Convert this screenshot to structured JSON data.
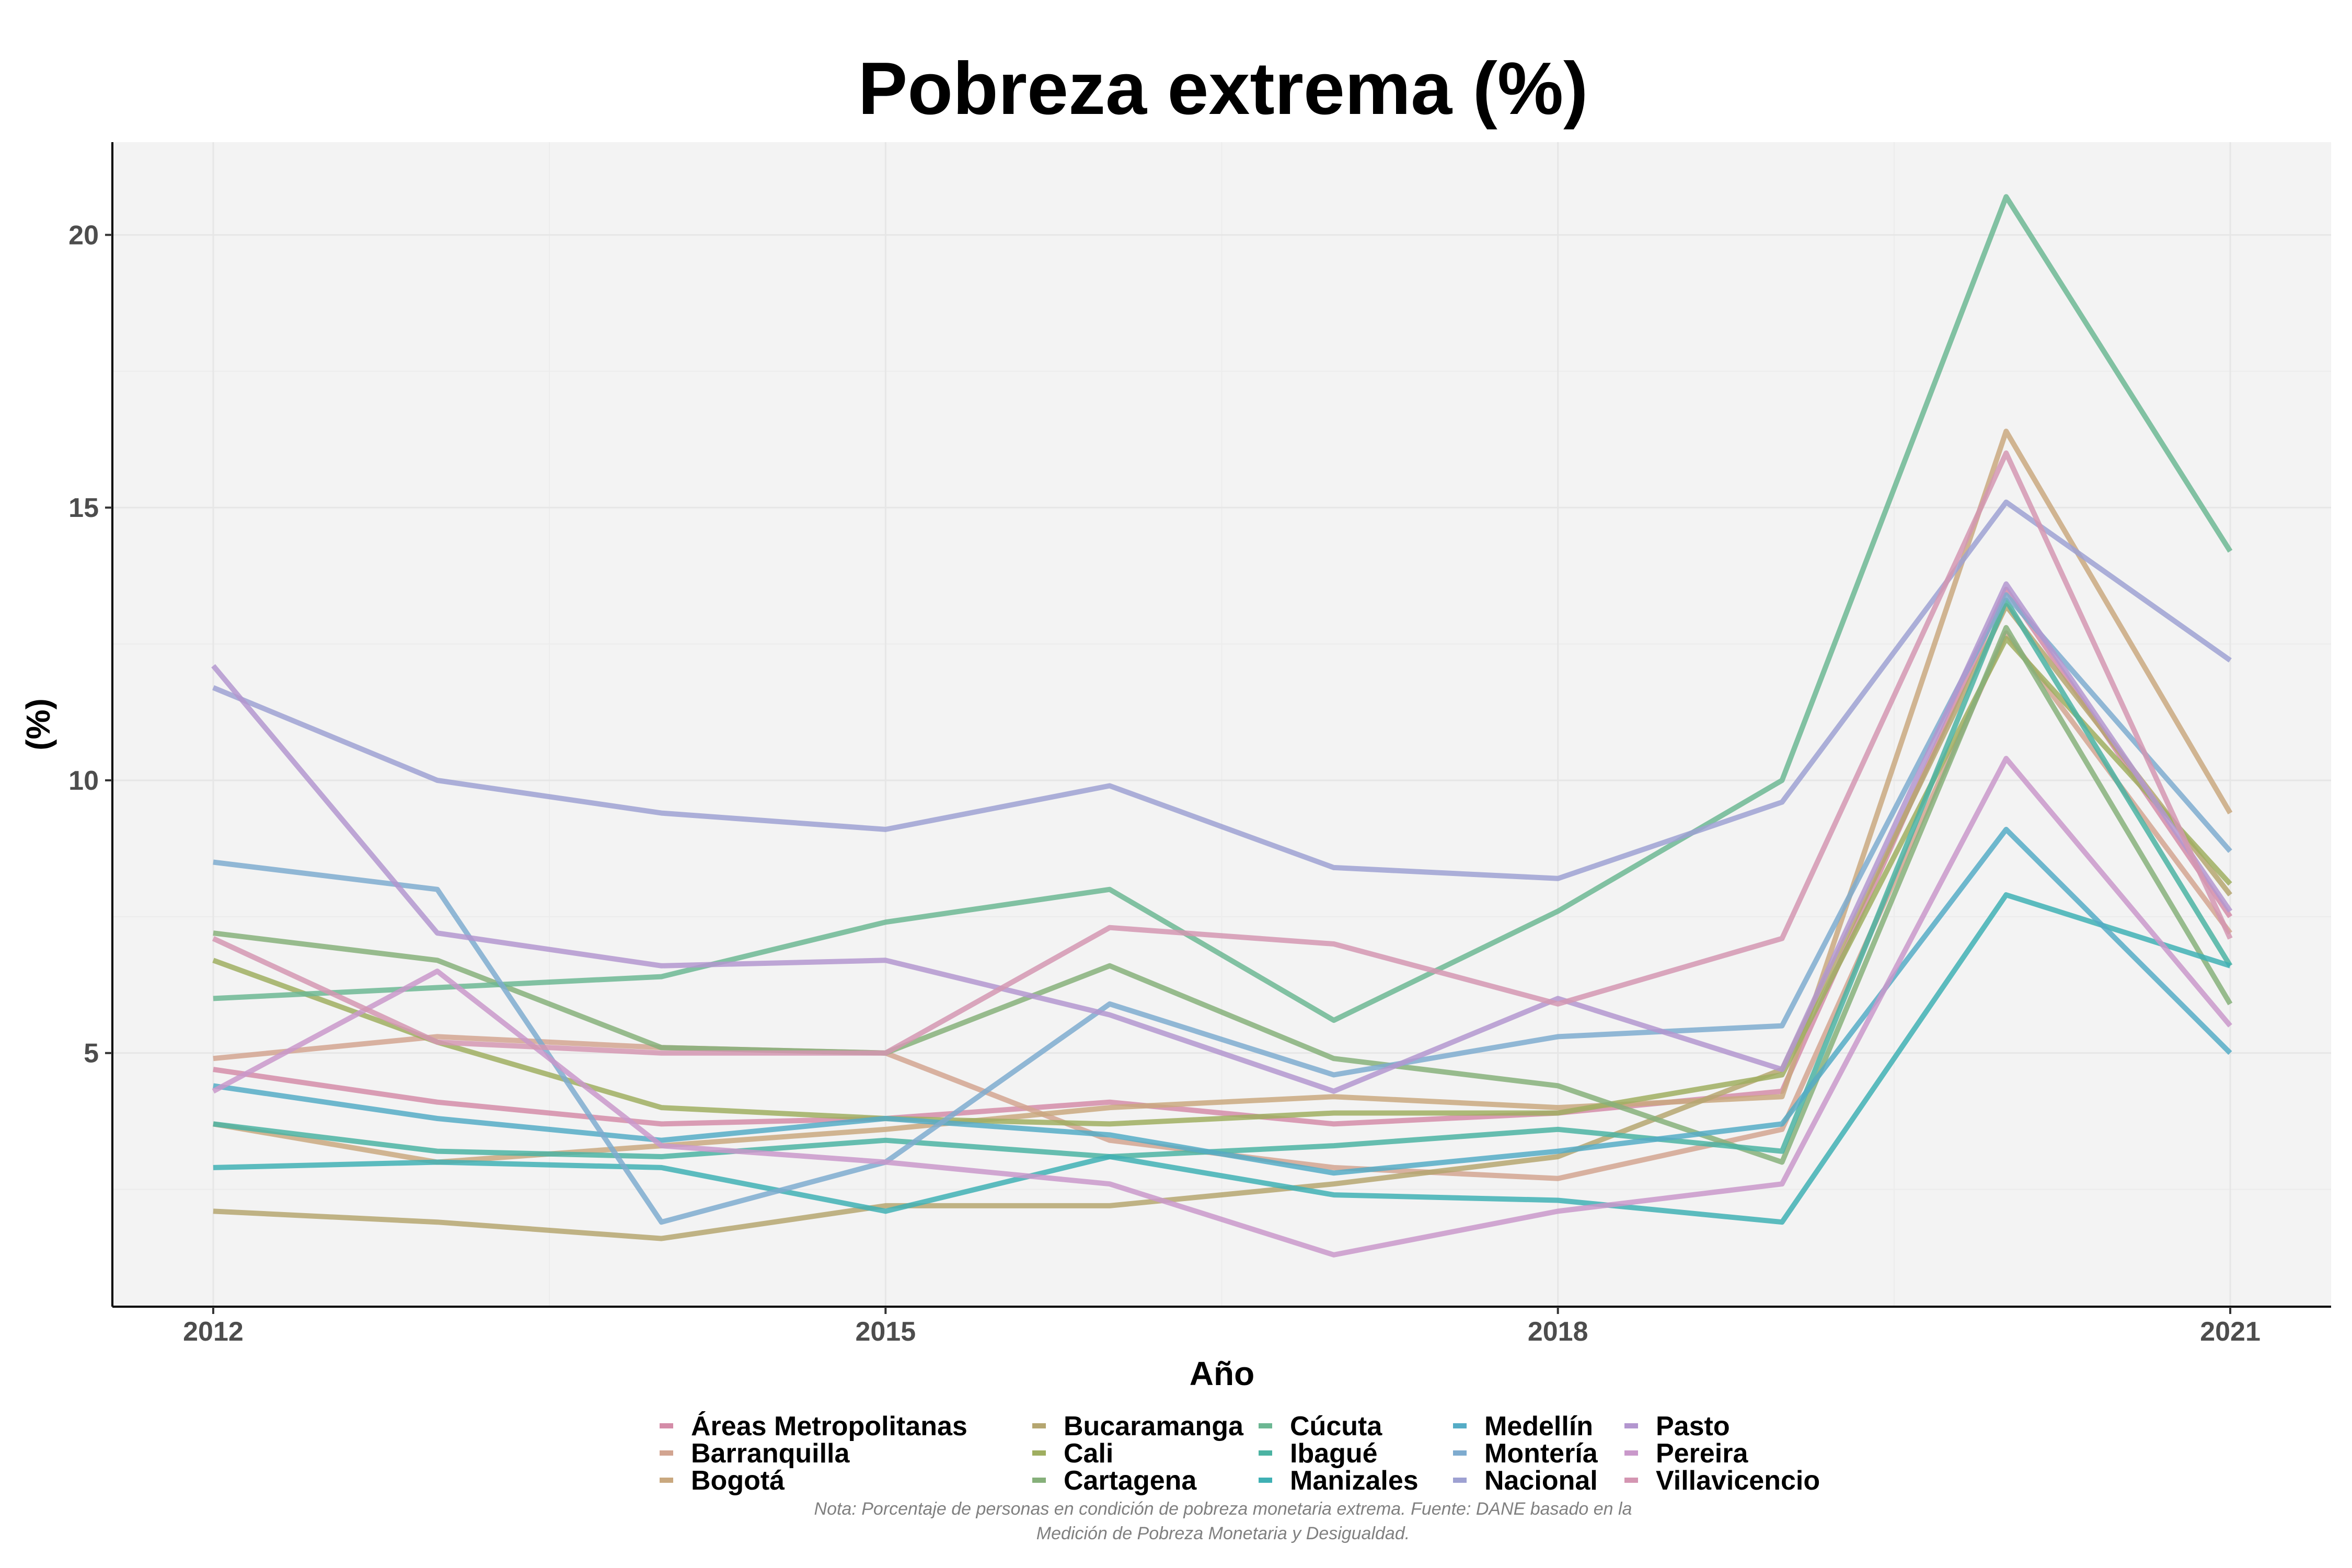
{
  "chart_data": {
    "type": "line",
    "title": "Pobreza extrema (%)",
    "xlabel": "Año",
    "ylabel": "(%)",
    "x": [
      2012,
      2013,
      2014,
      2015,
      2016,
      2017,
      2018,
      2019,
      2020,
      2021
    ],
    "xticks": [
      2012,
      2015,
      2018,
      2021
    ],
    "xtick_labels": [
      "2012",
      "2015",
      "2018",
      "2021"
    ],
    "yticks": [
      5,
      10,
      15,
      20
    ],
    "ytick_labels": [
      "5",
      "10",
      "15",
      "20"
    ],
    "xlim": [
      2011.55,
      2021.45
    ],
    "ylim": [
      0.35,
      21.7
    ],
    "grid": true,
    "legend_position": "bottom",
    "note_lines": [
      "Nota: Porcentaje de personas en condición de pobreza monetaria extrema. Fuente: DANE basado en la",
      "Medición de Pobreza Monetaria y Desigualdad."
    ],
    "series": [
      {
        "name": "Áreas Metropolitanas",
        "color": "#d48ca8",
        "values": [
          4.7,
          4.1,
          3.7,
          3.8,
          4.1,
          3.7,
          3.9,
          4.3,
          13.5,
          7.5
        ]
      },
      {
        "name": "Barranquilla",
        "color": "#d2a490",
        "values": [
          4.9,
          5.3,
          5.1,
          5.0,
          3.4,
          2.9,
          2.7,
          3.6,
          12.7,
          7.2
        ]
      },
      {
        "name": "Bogotá",
        "color": "#c9a87f",
        "values": [
          3.7,
          3.0,
          3.3,
          3.6,
          4.0,
          4.2,
          4.0,
          4.2,
          16.4,
          9.4
        ]
      },
      {
        "name": "Bucaramanga",
        "color": "#b5a670",
        "values": [
          2.1,
          1.9,
          1.6,
          2.2,
          2.2,
          2.6,
          3.1,
          4.7,
          13.2,
          7.9
        ]
      },
      {
        "name": "Cali",
        "color": "#9fae60",
        "values": [
          6.7,
          5.2,
          4.0,
          3.8,
          3.7,
          3.9,
          3.9,
          4.6,
          12.6,
          8.1
        ]
      },
      {
        "name": "Cartagena",
        "color": "#86b07a",
        "values": [
          7.2,
          6.7,
          5.1,
          5.0,
          6.6,
          4.9,
          4.4,
          3.0,
          12.8,
          5.9
        ]
      },
      {
        "name": "Cúcuta",
        "color": "#6cb793",
        "values": [
          6.0,
          6.2,
          6.4,
          7.4,
          8.0,
          5.6,
          7.6,
          10.0,
          20.7,
          14.2
        ]
      },
      {
        "name": "Ibagué",
        "color": "#4bb3a2",
        "values": [
          3.7,
          3.2,
          3.1,
          3.4,
          3.1,
          3.3,
          3.6,
          3.2,
          13.3,
          6.6
        ]
      },
      {
        "name": "Manizales",
        "color": "#3fb0b4",
        "values": [
          2.9,
          3.0,
          2.9,
          2.1,
          3.1,
          2.4,
          2.3,
          1.9,
          7.9,
          6.6
        ]
      },
      {
        "name": "Medellín",
        "color": "#55acc6",
        "values": [
          4.4,
          3.8,
          3.4,
          3.8,
          3.5,
          2.8,
          3.2,
          3.7,
          9.1,
          5.0
        ]
      },
      {
        "name": "Montería",
        "color": "#7eabcf",
        "values": [
          8.5,
          8.0,
          1.9,
          3.0,
          5.9,
          4.6,
          5.3,
          5.5,
          13.4,
          8.7
        ]
      },
      {
        "name": "Nacional",
        "color": "#9ea1d2",
        "values": [
          11.7,
          10.0,
          9.4,
          9.1,
          9.9,
          8.4,
          8.2,
          9.6,
          15.1,
          12.2
        ]
      },
      {
        "name": "Pasto",
        "color": "#b396cf",
        "values": [
          12.1,
          7.2,
          6.6,
          6.7,
          5.7,
          4.3,
          6.0,
          4.7,
          13.6,
          7.6
        ]
      },
      {
        "name": "Pereira",
        "color": "#c998ca",
        "values": [
          4.3,
          6.5,
          3.3,
          3.0,
          2.6,
          1.3,
          2.1,
          2.6,
          10.4,
          5.5
        ]
      },
      {
        "name": "Villavicencio",
        "color": "#d496b2",
        "values": [
          7.1,
          5.2,
          5.0,
          5.0,
          7.3,
          7.0,
          5.9,
          7.1,
          16.0,
          7.1
        ]
      }
    ]
  }
}
